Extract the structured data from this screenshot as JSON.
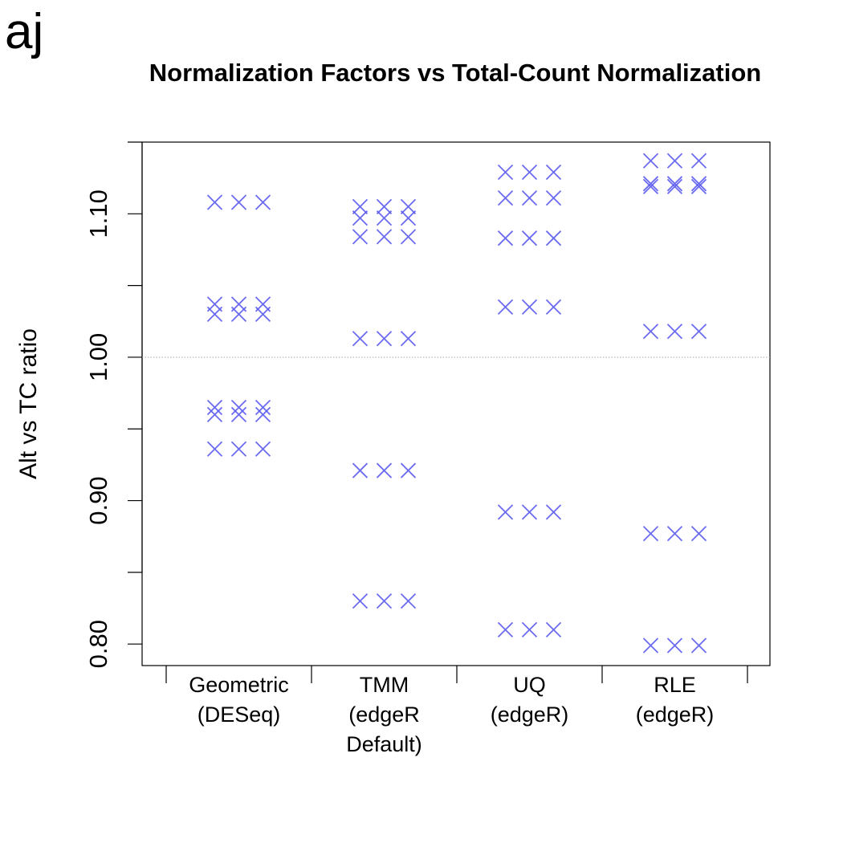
{
  "panel_label": "aj",
  "chart_data": {
    "type": "strip",
    "title": "Normalization Factors vs Total-Count Normalization",
    "ylabel": "Alt vs TC ratio",
    "categories": [
      "Geometric\n(DESeq)",
      "TMM\n(edgeR\nDefault)",
      "UQ\n(edgeR)",
      "RLE\n(edgeR)"
    ],
    "values": [
      [
        [
          1.108,
          1.108,
          1.108
        ],
        [
          1.037,
          1.037,
          1.037
        ],
        [
          1.03,
          1.03,
          1.03
        ],
        [
          0.965,
          0.965,
          0.965
        ],
        [
          0.96,
          0.96,
          0.96
        ],
        [
          0.936,
          0.936,
          0.936
        ]
      ],
      [
        [
          1.105,
          1.105,
          1.105
        ],
        [
          1.097,
          1.097,
          1.097
        ],
        [
          1.084,
          1.084,
          1.084
        ],
        [
          1.013,
          1.013,
          1.013
        ],
        [
          0.921,
          0.921,
          0.921
        ],
        [
          0.83,
          0.83,
          0.83
        ]
      ],
      [
        [
          1.129,
          1.129,
          1.129
        ],
        [
          1.111,
          1.111,
          1.111
        ],
        [
          1.083,
          1.083,
          1.083
        ],
        [
          1.035,
          1.035,
          1.035
        ],
        [
          0.892,
          0.892,
          0.892
        ],
        [
          0.81,
          0.81,
          0.81
        ]
      ],
      [
        [
          1.137,
          1.137,
          1.137
        ],
        [
          1.121,
          1.121,
          1.121
        ],
        [
          1.119,
          1.119,
          1.119
        ],
        [
          1.018,
          1.018,
          1.018
        ],
        [
          0.877,
          0.877,
          0.877
        ],
        [
          0.799,
          0.799,
          0.799
        ]
      ]
    ],
    "color": "#5b5bf0",
    "ylim": [
      0.785,
      1.15
    ],
    "yticks": [
      {
        "value": 0.8,
        "label": "0.80"
      },
      {
        "value": 0.9,
        "label": "0.90"
      },
      {
        "value": 1.0,
        "label": "1.00"
      },
      {
        "value": 1.1,
        "label": "1.10"
      }
    ],
    "yminor_ticks": [
      0.85,
      0.95,
      1.05,
      1.15
    ],
    "hline": 1.0
  }
}
